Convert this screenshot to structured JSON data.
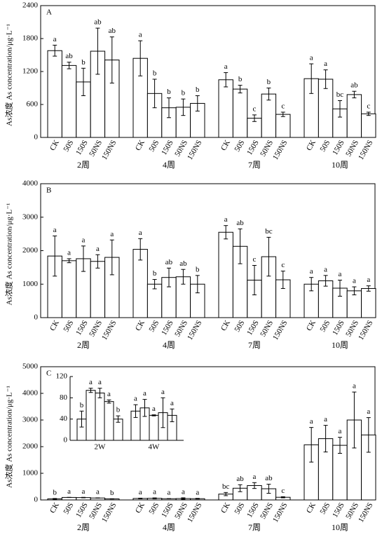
{
  "chart_data": [
    {
      "type": "bar",
      "panel": "A",
      "y_label": "As浓度 As concentration/μg·L⁻¹",
      "categories": [
        "CK",
        "50S",
        "150S",
        "50NS",
        "150NS"
      ],
      "color": "#ffffff",
      "ylim": [
        0,
        2400
      ],
      "yticks": [
        0,
        600,
        1200,
        1800,
        2400
      ],
      "series": [
        {
          "name": "2周",
          "values": [
            1580,
            1310,
            1010,
            1570,
            1410
          ],
          "errors": [
            100,
            60,
            250,
            420,
            420
          ],
          "letters": [
            "a",
            "ab",
            "b",
            "ab",
            "ab"
          ]
        },
        {
          "name": "4周",
          "values": [
            1440,
            800,
            540,
            550,
            620
          ],
          "errors": [
            320,
            260,
            180,
            150,
            140
          ],
          "letters": [
            "a",
            "b",
            "b",
            "b",
            "b"
          ]
        },
        {
          "name": "7周",
          "values": [
            1050,
            880,
            350,
            790,
            420
          ],
          "errors": [
            130,
            70,
            60,
            110,
            40
          ],
          "letters": [
            "a",
            "b",
            "c",
            "b",
            "c"
          ]
        },
        {
          "name": "10周",
          "values": [
            1070,
            1060,
            520,
            780,
            430
          ],
          "errors": [
            270,
            170,
            150,
            60,
            30
          ],
          "letters": [
            "a",
            "a",
            "bc",
            "ab",
            "c"
          ]
        }
      ]
    },
    {
      "type": "bar",
      "panel": "B",
      "y_label": "As浓度 As concentration/μg·L⁻¹",
      "categories": [
        "CK",
        "50S",
        "150S",
        "50NS",
        "150NS"
      ],
      "color": "#ffffff",
      "ylim": [
        0,
        4000
      ],
      "yticks": [
        0,
        1000,
        2000,
        3000,
        4000
      ],
      "series": [
        {
          "name": "2周",
          "values": [
            1840,
            1700,
            1760,
            1680,
            1800
          ],
          "errors": [
            600,
            60,
            380,
            200,
            520
          ],
          "letters": [
            "a",
            "a",
            "a",
            "a",
            "a"
          ]
        },
        {
          "name": "4周",
          "values": [
            2040,
            1000,
            1200,
            1220,
            1000
          ],
          "errors": [
            320,
            140,
            280,
            220,
            260
          ],
          "letters": [
            "a",
            "b",
            "ab",
            "ab",
            "b"
          ]
        },
        {
          "name": "7周",
          "values": [
            2550,
            2130,
            1120,
            1820,
            1130
          ],
          "errors": [
            200,
            520,
            440,
            580,
            260
          ],
          "letters": [
            "a",
            "ab",
            "c",
            "bc",
            "c"
          ]
        },
        {
          "name": "10周",
          "values": [
            1000,
            1100,
            880,
            800,
            870
          ],
          "errors": [
            200,
            160,
            240,
            120,
            80
          ],
          "letters": [
            "a",
            "a",
            "a",
            "a",
            "a"
          ]
        }
      ]
    },
    {
      "type": "bar",
      "panel": "C",
      "y_label": "As浓度 As concentration/μg·L⁻¹",
      "categories": [
        "CK",
        "50S",
        "150S",
        "50NS",
        "150NS"
      ],
      "color": "#ffffff",
      "ylim": [
        0,
        5000
      ],
      "yticks": [
        0,
        1000,
        2000,
        3000,
        4000,
        5000
      ],
      "series": [
        {
          "name": "2周",
          "values": [
            40,
            94,
            89,
            73,
            40
          ],
          "errors": [
            15,
            4,
            9,
            3,
            6
          ],
          "letters": [
            "b",
            "a",
            "a",
            "a",
            "b"
          ]
        },
        {
          "name": "4周",
          "values": [
            55,
            61,
            47,
            52,
            47
          ],
          "errors": [
            12,
            16,
            1,
            28,
            12
          ],
          "letters": [
            "a",
            "a",
            "a",
            "a",
            "a"
          ]
        },
        {
          "name": "7周",
          "values": [
            220,
            440,
            540,
            420,
            100
          ],
          "errors": [
            60,
            130,
            110,
            170,
            20
          ],
          "letters": [
            "bc",
            "ab",
            "a",
            "ab",
            "c"
          ]
        },
        {
          "name": "10周",
          "values": [
            2070,
            2300,
            2050,
            3000,
            2440
          ],
          "errors": [
            650,
            500,
            300,
            1050,
            650
          ],
          "letters": [
            "a",
            "a",
            "a",
            "a",
            "a"
          ]
        }
      ],
      "inset": {
        "categories": [
          "2W",
          "4W"
        ],
        "ylim": [
          0,
          120
        ],
        "yticks": [
          0,
          40,
          80,
          120
        ]
      }
    }
  ]
}
